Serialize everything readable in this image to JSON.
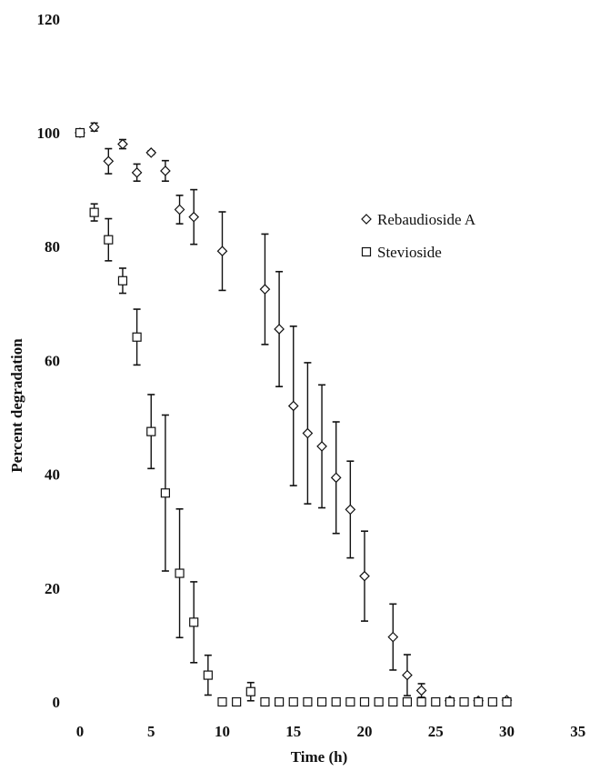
{
  "chart_data": {
    "type": "scatter",
    "title": "",
    "xlabel": "Time (h)",
    "ylabel": "Percent degradation",
    "xlim": [
      0,
      35
    ],
    "ylim": [
      0,
      120
    ],
    "xticks": [
      "0",
      "5",
      "10",
      "15",
      "20",
      "25",
      "30",
      "35"
    ],
    "yticks": [
      "0",
      "20",
      "40",
      "60",
      "80",
      "100",
      "120"
    ],
    "grid": false,
    "legend_position": "right",
    "series": [
      {
        "name": "Rebaudioside A",
        "marker": "diamond",
        "color": "#111111",
        "points": [
          {
            "x": 0,
            "y": 100,
            "err": 0
          },
          {
            "x": 1,
            "y": 101,
            "err": 0.7
          },
          {
            "x": 2,
            "y": 95,
            "err": 2.2
          },
          {
            "x": 3,
            "y": 98,
            "err": 0.8
          },
          {
            "x": 4,
            "y": 93,
            "err": 1.5
          },
          {
            "x": 5,
            "y": 96.5,
            "err": 0.3
          },
          {
            "x": 6,
            "y": 93.3,
            "err": 1.8
          },
          {
            "x": 7,
            "y": 86.5,
            "err": 2.5
          },
          {
            "x": 8,
            "y": 85.2,
            "err": 4.8
          },
          {
            "x": 10,
            "y": 79.2,
            "err": 6.9
          },
          {
            "x": 13,
            "y": 72.5,
            "err": 9.7
          },
          {
            "x": 14,
            "y": 65.5,
            "err": 10.1
          },
          {
            "x": 15,
            "y": 52,
            "err": 14
          },
          {
            "x": 16,
            "y": 47.2,
            "err": 12.4
          },
          {
            "x": 17,
            "y": 44.9,
            "err": 10.8
          },
          {
            "x": 18,
            "y": 39.4,
            "err": 9.8
          },
          {
            "x": 19,
            "y": 33.8,
            "err": 8.5
          },
          {
            "x": 20,
            "y": 22.1,
            "err": 7.9
          },
          {
            "x": 22,
            "y": 11.4,
            "err": 5.8
          },
          {
            "x": 23,
            "y": 4.7,
            "err": 3.6
          },
          {
            "x": 24,
            "y": 2,
            "err": 1.2
          },
          {
            "x": 26,
            "y": 0.2,
            "err": 0
          },
          {
            "x": 28,
            "y": 0.2,
            "err": 0
          },
          {
            "x": 30,
            "y": 0.3,
            "err": 0
          }
        ]
      },
      {
        "name": "Stevioside",
        "marker": "square",
        "color": "#111111",
        "points": [
          {
            "x": 0,
            "y": 100,
            "err": 0
          },
          {
            "x": 1,
            "y": 86,
            "err": 1.5
          },
          {
            "x": 2,
            "y": 81.2,
            "err": 3.7
          },
          {
            "x": 3,
            "y": 74,
            "err": 2.2
          },
          {
            "x": 4,
            "y": 64.1,
            "err": 4.9
          },
          {
            "x": 5,
            "y": 47.5,
            "err": 6.5
          },
          {
            "x": 6,
            "y": 36.7,
            "err": 13.7
          },
          {
            "x": 7,
            "y": 22.6,
            "err": 11.3
          },
          {
            "x": 8,
            "y": 14,
            "err": 7.1
          },
          {
            "x": 9,
            "y": 4.7,
            "err": 3.5
          },
          {
            "x": 10,
            "y": 0,
            "err": 0
          },
          {
            "x": 11,
            "y": 0,
            "err": 0
          },
          {
            "x": 12,
            "y": 1.8,
            "err": 1.6
          },
          {
            "x": 13,
            "y": 0,
            "err": 0
          },
          {
            "x": 14,
            "y": 0,
            "err": 0
          },
          {
            "x": 15,
            "y": 0,
            "err": 0
          },
          {
            "x": 16,
            "y": 0,
            "err": 0
          },
          {
            "x": 17,
            "y": 0,
            "err": 0
          },
          {
            "x": 18,
            "y": 0,
            "err": 0
          },
          {
            "x": 19,
            "y": 0,
            "err": 0
          },
          {
            "x": 20,
            "y": 0,
            "err": 0
          },
          {
            "x": 21,
            "y": 0,
            "err": 0
          },
          {
            "x": 22,
            "y": 0,
            "err": 0
          },
          {
            "x": 23,
            "y": 0,
            "err": 0
          },
          {
            "x": 24,
            "y": 0,
            "err": 0
          },
          {
            "x": 25,
            "y": 0,
            "err": 0
          },
          {
            "x": 26,
            "y": 0,
            "err": 0
          },
          {
            "x": 27,
            "y": 0,
            "err": 0
          },
          {
            "x": 28,
            "y": 0,
            "err": 0
          },
          {
            "x": 29,
            "y": 0,
            "err": 0
          },
          {
            "x": 30,
            "y": 0,
            "err": 0
          }
        ]
      }
    ]
  }
}
